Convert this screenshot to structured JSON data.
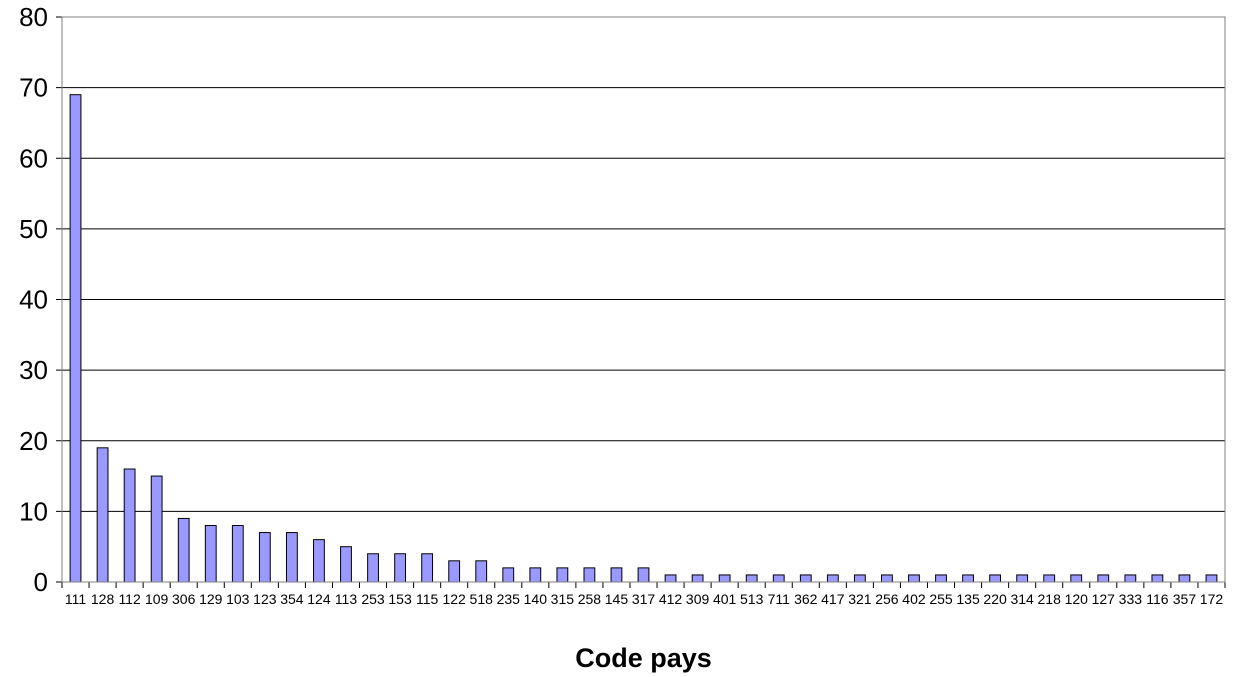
{
  "chart_data": {
    "type": "bar",
    "title": "",
    "xlabel": "Code pays",
    "ylabel": "",
    "ylim": [
      0,
      80
    ],
    "yticks": [
      0,
      10,
      20,
      30,
      40,
      50,
      60,
      70,
      80
    ],
    "grid": true,
    "legend": "none",
    "bar_color": "#9999ff",
    "categories": [
      "111",
      "128",
      "112",
      "109",
      "306",
      "129",
      "103",
      "123",
      "354",
      "124",
      "113",
      "253",
      "153",
      "115",
      "122",
      "518",
      "235",
      "140",
      "315",
      "258",
      "145",
      "317",
      "412",
      "309",
      "401",
      "513",
      "711",
      "362",
      "417",
      "321",
      "256",
      "402",
      "255",
      "135",
      "220",
      "314",
      "218",
      "120",
      "127",
      "333",
      "116",
      "357",
      "172"
    ],
    "values": [
      69,
      19,
      16,
      15,
      9,
      8,
      8,
      7,
      7,
      6,
      5,
      4,
      4,
      4,
      3,
      3,
      2,
      2,
      2,
      2,
      2,
      2,
      1,
      1,
      1,
      1,
      1,
      1,
      1,
      1,
      1,
      1,
      1,
      1,
      1,
      1,
      1,
      1,
      1,
      1,
      1,
      1,
      1
    ]
  }
}
